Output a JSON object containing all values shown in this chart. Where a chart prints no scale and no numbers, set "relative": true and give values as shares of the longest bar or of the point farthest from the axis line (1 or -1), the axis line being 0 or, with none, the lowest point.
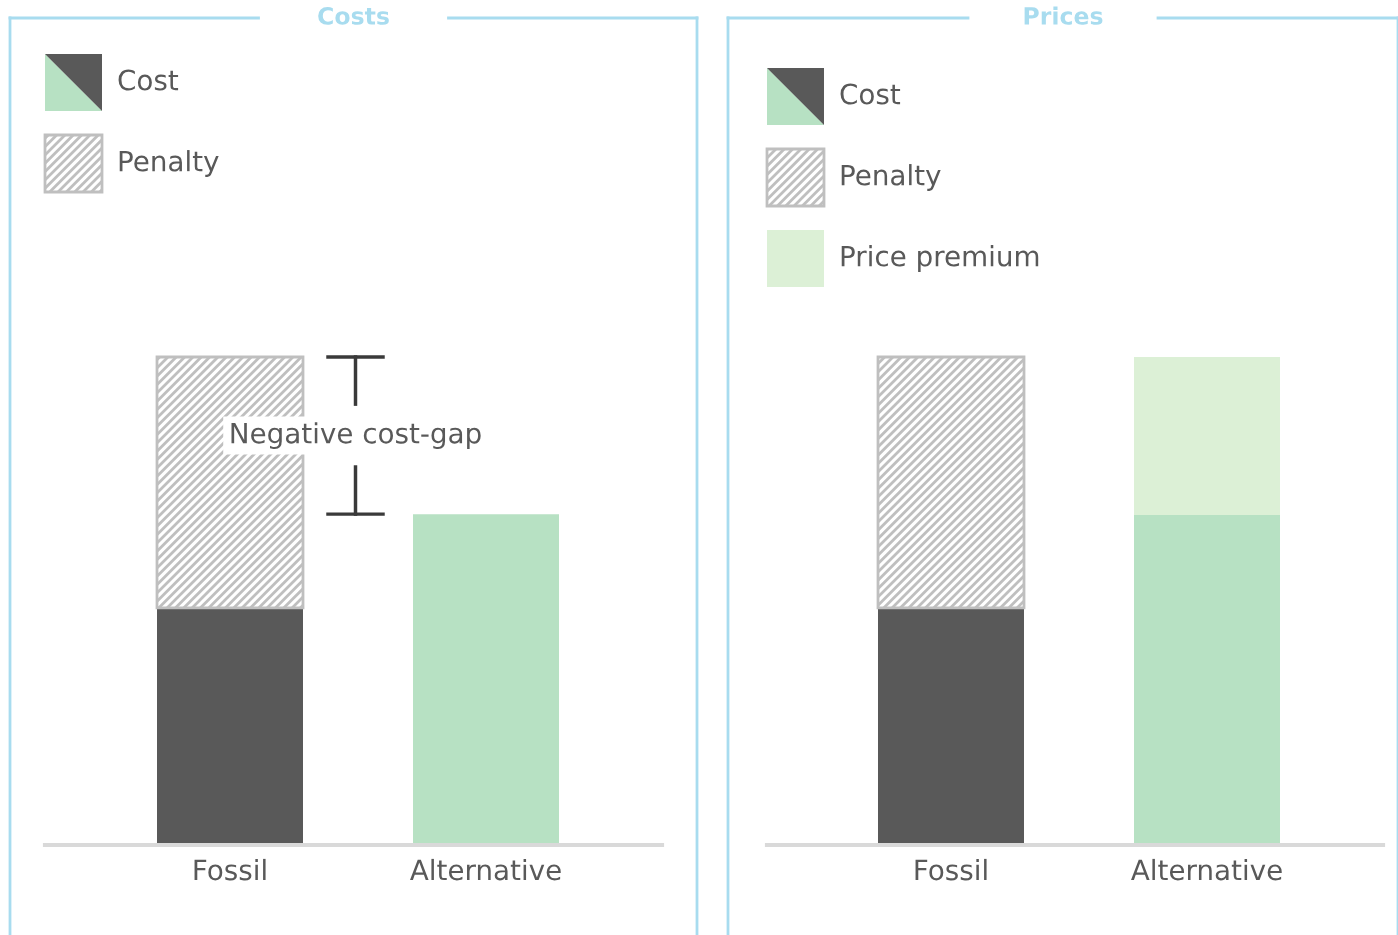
{
  "chart_data": [
    {
      "type": "bar",
      "title": "Costs",
      "relative": true,
      "stacked": true,
      "categories": [
        "Fossil",
        "Alternative"
      ],
      "legend": "top left",
      "series": [
        {
          "name": "Cost",
          "colors": [
            "#595959",
            "#b7e1c3"
          ],
          "values": [
            0.486,
            0.678
          ]
        },
        {
          "name": "Penalty",
          "color": "#bfbfbf",
          "values": [
            0.514,
            null
          ]
        }
      ],
      "annotations": [
        "Negative cost-gap"
      ]
    },
    {
      "type": "bar",
      "title": "Prices",
      "relative": true,
      "stacked": true,
      "categories": [
        "Fossil",
        "Alternative"
      ],
      "legend": "top left",
      "series": [
        {
          "name": "Cost",
          "colors": [
            "#595959",
            "#b7e1c3"
          ],
          "values": [
            0.486,
            0.676
          ]
        },
        {
          "name": "Penalty",
          "color": "#bfbfbf",
          "values": [
            0.514,
            null
          ]
        },
        {
          "name": "Price premium",
          "color": "#dcf0d6",
          "values": [
            null,
            0.324
          ]
        }
      ]
    }
  ]
}
